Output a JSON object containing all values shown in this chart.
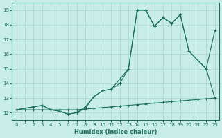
{
  "xlabel": "Humidex (Indice chaleur)",
  "xlim": [
    -0.5,
    23.5
  ],
  "ylim": [
    11.5,
    19.5
  ],
  "xticks": [
    0,
    1,
    2,
    3,
    4,
    5,
    6,
    7,
    8,
    9,
    10,
    11,
    12,
    13,
    14,
    15,
    16,
    17,
    18,
    19,
    20,
    21,
    22,
    23
  ],
  "yticks": [
    12,
    13,
    14,
    15,
    16,
    17,
    18,
    19
  ],
  "bg_color": "#c8ece6",
  "grid_color": "#a8d5cc",
  "line_color": "#1a7060",
  "line1_x": [
    0,
    1,
    2,
    3,
    4,
    5,
    6,
    7,
    8,
    9,
    10,
    11,
    12,
    13,
    14,
    15,
    16,
    17,
    18,
    19,
    20,
    21,
    22,
    23
  ],
  "line1_y": [
    12.2,
    12.2,
    12.2,
    12.2,
    12.2,
    12.2,
    12.2,
    12.2,
    12.25,
    12.3,
    12.35,
    12.4,
    12.45,
    12.5,
    12.55,
    12.6,
    12.65,
    12.7,
    12.75,
    12.8,
    12.85,
    12.9,
    12.95,
    13.0
  ],
  "line2_x": [
    0,
    2,
    3,
    4,
    5,
    6,
    7,
    8,
    9,
    10,
    11,
    12,
    13,
    14,
    15,
    16,
    17,
    18,
    19,
    20,
    22,
    23
  ],
  "line2_y": [
    12.2,
    12.4,
    12.5,
    12.2,
    12.1,
    11.9,
    12.0,
    12.4,
    13.1,
    13.5,
    13.6,
    14.0,
    15.0,
    19.0,
    19.0,
    17.9,
    18.5,
    18.1,
    18.7,
    16.2,
    15.0,
    17.6
  ],
  "line3_x": [
    0,
    2,
    3,
    4,
    5,
    6,
    7,
    8,
    9,
    10,
    11,
    12,
    13,
    14,
    15,
    16,
    17,
    18,
    19,
    20,
    22,
    23
  ],
  "line3_y": [
    12.2,
    12.4,
    12.5,
    12.2,
    12.1,
    11.9,
    12.0,
    12.3,
    13.1,
    13.5,
    13.6,
    14.3,
    15.0,
    19.0,
    19.0,
    17.9,
    18.5,
    18.1,
    18.7,
    16.2,
    15.0,
    13.0
  ]
}
